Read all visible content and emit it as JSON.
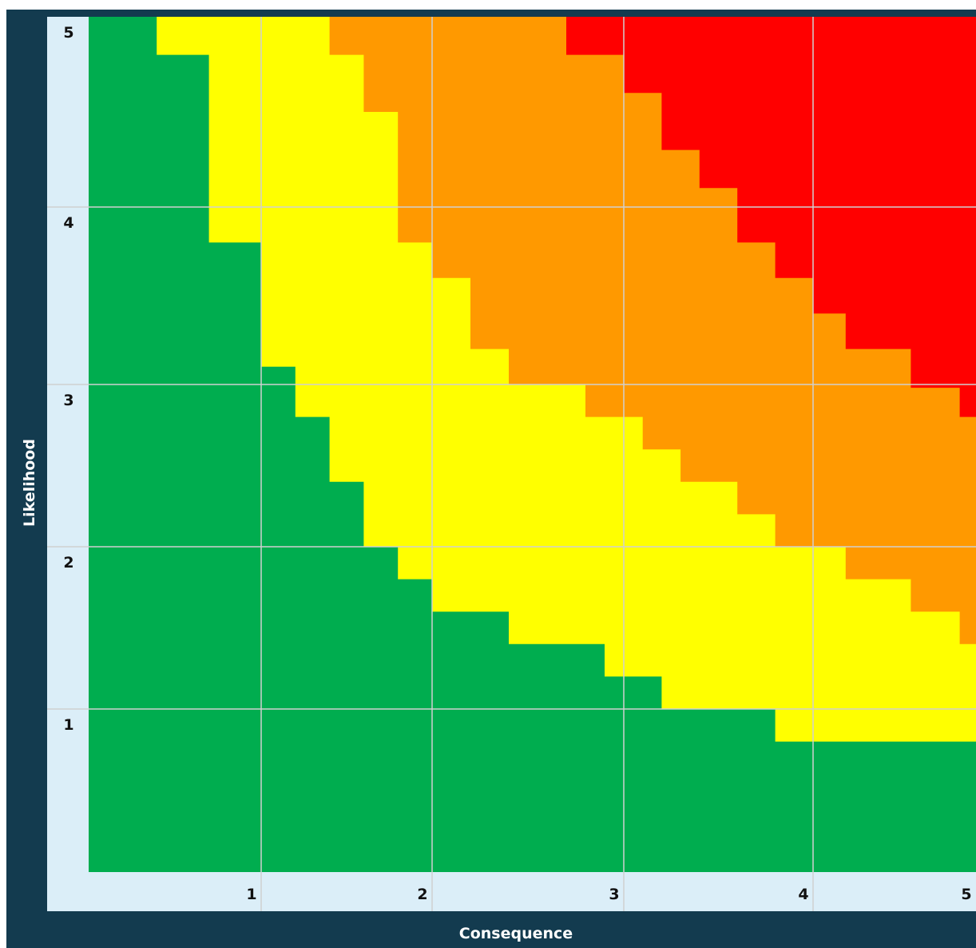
{
  "chart_data": {
    "type": "heatmap",
    "title": "",
    "xlabel": "Consequence",
    "ylabel": "Likelihood",
    "xlim": [
      0,
      5
    ],
    "ylim": [
      0,
      5
    ],
    "x_ticks": [
      "1",
      "2",
      "3",
      "4",
      "5"
    ],
    "y_ticks": [
      "1",
      "2",
      "3",
      "4",
      "5"
    ],
    "grid": true,
    "levels": [
      "green",
      "yellow",
      "orange",
      "red"
    ],
    "colors": {
      "green": "#00ad4f",
      "yellow": "#ffff00",
      "orange": "#ff9900",
      "red": "#ff0000"
    },
    "step_boundaries": [
      {
        "from": "green",
        "to": "yellow",
        "points": [
          [
            0.6,
            5.0
          ],
          [
            0.6,
            4.8
          ],
          [
            0.8,
            4.8
          ],
          [
            0.8,
            4.0
          ],
          [
            0.8,
            3.8
          ],
          [
            1.0,
            3.8
          ],
          [
            1.0,
            3.1
          ],
          [
            1.2,
            3.1
          ],
          [
            1.2,
            2.8
          ],
          [
            1.4,
            2.8
          ],
          [
            1.4,
            2.4
          ],
          [
            1.6,
            2.4
          ],
          [
            1.6,
            2.0
          ],
          [
            1.8,
            2.0
          ],
          [
            1.8,
            1.8
          ],
          [
            2.0,
            1.8
          ],
          [
            2.0,
            1.6
          ],
          [
            2.4,
            1.6
          ],
          [
            2.4,
            1.4
          ],
          [
            2.9,
            1.4
          ],
          [
            2.9,
            1.2
          ],
          [
            3.2,
            1.2
          ],
          [
            3.2,
            1.0
          ],
          [
            3.8,
            1.0
          ],
          [
            3.8,
            0.8
          ],
          [
            5.0,
            0.8
          ]
        ]
      },
      {
        "from": "yellow",
        "to": "orange",
        "points": [
          [
            1.4,
            5.0
          ],
          [
            1.4,
            4.8
          ],
          [
            1.6,
            4.8
          ],
          [
            1.6,
            4.5
          ],
          [
            1.8,
            4.5
          ],
          [
            1.8,
            4.0
          ],
          [
            1.8,
            3.8
          ],
          [
            2.0,
            3.8
          ],
          [
            2.0,
            3.6
          ],
          [
            2.2,
            3.6
          ],
          [
            2.2,
            3.2
          ],
          [
            2.4,
            3.2
          ],
          [
            2.4,
            3.0
          ],
          [
            2.8,
            3.0
          ],
          [
            2.8,
            2.8
          ],
          [
            3.1,
            2.8
          ],
          [
            3.1,
            2.6
          ],
          [
            3.3,
            2.6
          ],
          [
            3.3,
            2.4
          ],
          [
            3.6,
            2.4
          ],
          [
            3.6,
            2.2
          ],
          [
            3.8,
            2.2
          ],
          [
            3.8,
            2.0
          ],
          [
            4.2,
            2.0
          ],
          [
            4.2,
            1.8
          ],
          [
            4.6,
            1.8
          ],
          [
            4.6,
            1.6
          ],
          [
            4.9,
            1.6
          ],
          [
            4.9,
            1.4
          ],
          [
            5.0,
            1.4
          ]
        ]
      },
      {
        "from": "orange",
        "to": "red",
        "points": [
          [
            2.7,
            5.0
          ],
          [
            2.7,
            4.8
          ],
          [
            3.0,
            4.8
          ],
          [
            3.0,
            4.6
          ],
          [
            3.2,
            4.6
          ],
          [
            3.2,
            4.3
          ],
          [
            3.4,
            4.3
          ],
          [
            3.4,
            4.1
          ],
          [
            3.6,
            4.1
          ],
          [
            3.6,
            4.0
          ],
          [
            3.6,
            3.8
          ],
          [
            3.8,
            3.8
          ],
          [
            3.8,
            3.6
          ],
          [
            4.0,
            3.6
          ],
          [
            4.0,
            3.4
          ],
          [
            4.2,
            3.4
          ],
          [
            4.2,
            3.2
          ],
          [
            4.6,
            3.2
          ],
          [
            4.6,
            2.98
          ],
          [
            4.9,
            2.98
          ],
          [
            4.9,
            2.8
          ],
          [
            5.0,
            2.8
          ]
        ]
      }
    ]
  }
}
